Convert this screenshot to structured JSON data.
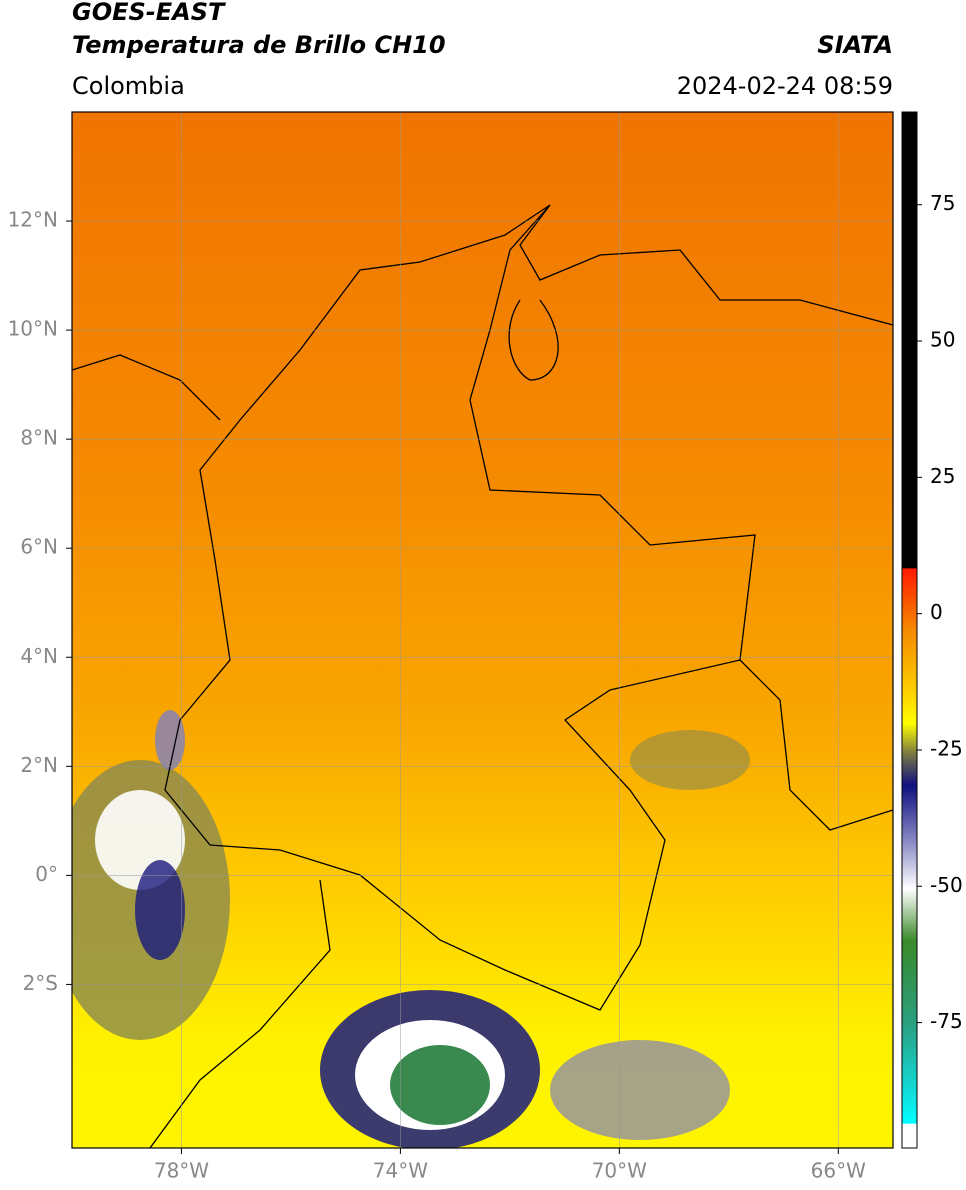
{
  "chart_data": {
    "type": "map",
    "title": "GOES-EAST",
    "subtitle": "Temperatura de Brillo CH10",
    "source": "SIATA",
    "region": "Colombia",
    "timestamp": "2024-02-24 08:59",
    "xlim": [
      -80,
      -65
    ],
    "ylim": [
      -5,
      14
    ],
    "xticks": [
      {
        "value": -78,
        "label": "78°W"
      },
      {
        "value": -74,
        "label": "74°W"
      },
      {
        "value": -70,
        "label": "70°W"
      },
      {
        "value": -66,
        "label": "66°W"
      }
    ],
    "yticks": [
      {
        "value": 12,
        "label": "12°N"
      },
      {
        "value": 10,
        "label": "10°N"
      },
      {
        "value": 8,
        "label": "8°N"
      },
      {
        "value": 6,
        "label": "6°N"
      },
      {
        "value": 4,
        "label": "4°N"
      },
      {
        "value": 2,
        "label": "2°N"
      },
      {
        "value": 0,
        "label": "0°"
      },
      {
        "value": -2,
        "label": "2°S"
      }
    ],
    "grid": true,
    "colorbar": {
      "lim": [
        -98,
        92
      ],
      "ticks": [
        75,
        50,
        25,
        0,
        -25,
        -50,
        -75
      ]
    }
  }
}
